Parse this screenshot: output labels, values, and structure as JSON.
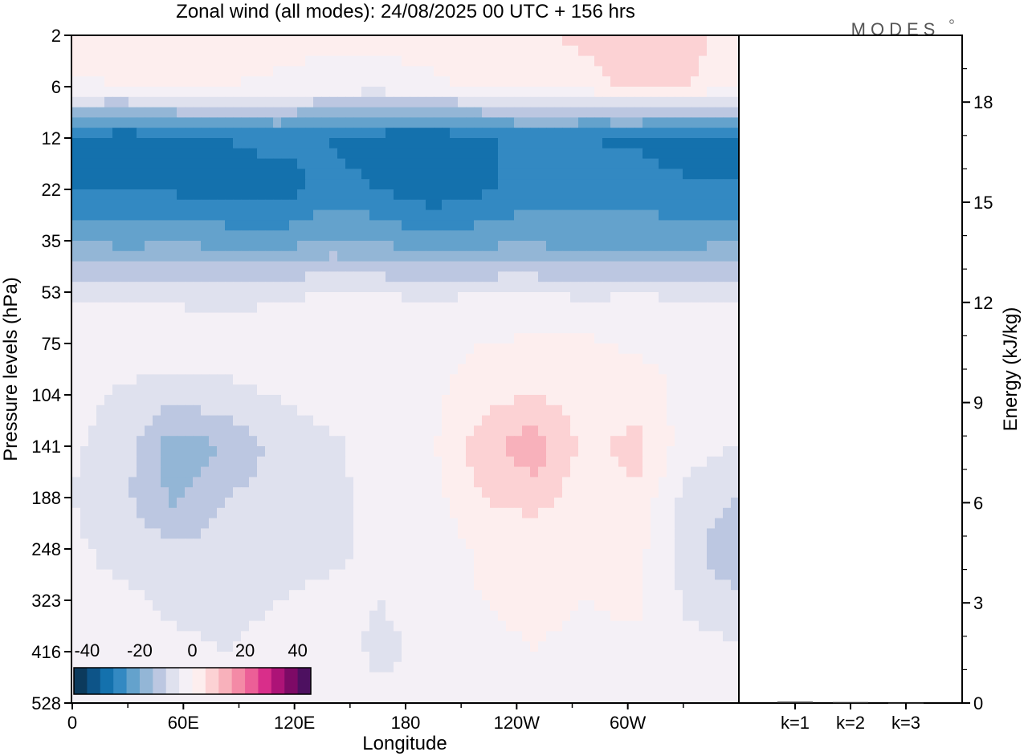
{
  "title": "Zonal wind (all modes):  24/08/2025  00 UTC  + 156 hrs",
  "logo": "MODES",
  "colors": {
    "frame": "#000000",
    "bar_fill": "#2a2a2a",
    "palette": [
      "#0c3a5c",
      "#0d5488",
      "#1471ad",
      "#3389c2",
      "#64a2cc",
      "#93b6d6",
      "#bcc7e1",
      "#dfe1ee",
      "#f4f0f6",
      "#fdeeee",
      "#fcd2d4",
      "#f8b1bb",
      "#f48aa6",
      "#ec5f97",
      "#d92e8a",
      "#ad1377",
      "#7d0a66",
      "#4d1060"
    ],
    "neutral": "#f3eff6"
  },
  "chart_data": [
    {
      "type": "heatmap",
      "title": "Zonal wind (all modes):  24/08/2025  00 UTC  + 156 hrs",
      "xlabel": "Longitude",
      "ylabel": "Pressure levels (hPa)",
      "x_ticks": [
        "0",
        "60E",
        "120E",
        "180",
        "120W",
        "60W"
      ],
      "x_tick_lon": [
        0,
        60,
        120,
        180,
        240,
        300
      ],
      "xlim": [
        0,
        360
      ],
      "y_ticks": [
        "2",
        "6",
        "12",
        "22",
        "35",
        "53",
        "75",
        "104",
        "141",
        "188",
        "248",
        "323",
        "416",
        "528"
      ],
      "colorbar": {
        "labels": [
          "-40",
          "-20",
          "0",
          "20",
          "40"
        ],
        "label_values": [
          -40,
          -20,
          0,
          20,
          40
        ],
        "min": -45,
        "max": 45,
        "step": 5
      },
      "levels": [
        {
          "p": "2",
          "v": [
            3,
            4,
            5,
            4,
            2,
            1,
            1,
            2,
            3,
            4,
            6,
            9,
            7,
            3
          ]
        },
        {
          "p": "6",
          "v": [
            -1,
            0,
            1,
            0,
            -1,
            -2,
            -2,
            -1,
            1,
            2,
            3,
            6,
            5,
            1
          ]
        },
        {
          "p": "12",
          "v": [
            -30,
            -34,
            -31,
            -30,
            -28,
            -30,
            -33,
            -35,
            -31,
            -28,
            -30,
            -31,
            -33,
            -30
          ]
        },
        {
          "p": "22",
          "v": [
            -31,
            -30,
            -31,
            -32,
            -33,
            -28,
            -30,
            -33,
            -31,
            -27,
            -27,
            -27,
            -29,
            -30
          ]
        },
        {
          "p": "35",
          "v": [
            -20,
            -22,
            -21,
            -22,
            -23,
            -19,
            -21,
            -24,
            -22,
            -21,
            -23,
            -22,
            -22,
            -21
          ]
        },
        {
          "p": "53",
          "v": [
            -6,
            -6,
            -6,
            -7,
            -6,
            -5,
            -5,
            -6,
            -5,
            -5,
            -6,
            -5,
            -6,
            -6
          ]
        },
        {
          "p": "75",
          "v": [
            -2,
            -1,
            -2,
            -3,
            -1,
            0,
            -1,
            -2,
            0,
            1,
            1,
            -1,
            -1,
            -2
          ]
        },
        {
          "p": "104",
          "v": [
            -3,
            -6,
            -8,
            -6,
            -5,
            -3,
            -2,
            -1,
            3,
            5,
            2,
            3,
            -2,
            -3
          ]
        },
        {
          "p": "141",
          "v": [
            -4,
            -8,
            -18,
            -15,
            -8,
            -6,
            -3,
            -1,
            8,
            14,
            3,
            7,
            -3,
            -5
          ]
        },
        {
          "p": "188",
          "v": [
            -5,
            -9,
            -16,
            -10,
            -8,
            -6,
            -4,
            -2,
            5,
            7,
            2,
            4,
            -7,
            -10
          ]
        },
        {
          "p": "248",
          "v": [
            -4,
            -7,
            -9,
            -8,
            -7,
            -6,
            -4,
            -3,
            1,
            2,
            1,
            2,
            -8,
            -15
          ]
        },
        {
          "p": "323",
          "v": [
            -3,
            -4,
            -6,
            -6,
            -5,
            -4,
            -5,
            -3,
            0,
            1,
            0,
            1,
            -6,
            -9
          ]
        },
        {
          "p": "416",
          "v": [
            -2,
            -3,
            -4,
            -5,
            -4,
            -3,
            -6,
            -4,
            -1,
            0,
            -1,
            -1,
            -3,
            -4
          ]
        },
        {
          "p": "528",
          "v": [
            -2,
            -2,
            -3,
            -4,
            -3,
            -2,
            -4,
            -3,
            -1,
            -1,
            -2,
            -2,
            -2,
            -2
          ]
        }
      ]
    },
    {
      "type": "bar",
      "ylabel": "Energy (kJ/kg)",
      "categories": [
        "k=1",
        "k=2",
        "k=3"
      ],
      "values": [
        0.04,
        0.03,
        0.01
      ],
      "ylim": [
        0,
        20
      ],
      "y_ticks": [
        "0",
        "3",
        "6",
        "9",
        "12",
        "15",
        "18"
      ],
      "y_tick_values": [
        0,
        3,
        6,
        9,
        12,
        15,
        18
      ]
    }
  ]
}
